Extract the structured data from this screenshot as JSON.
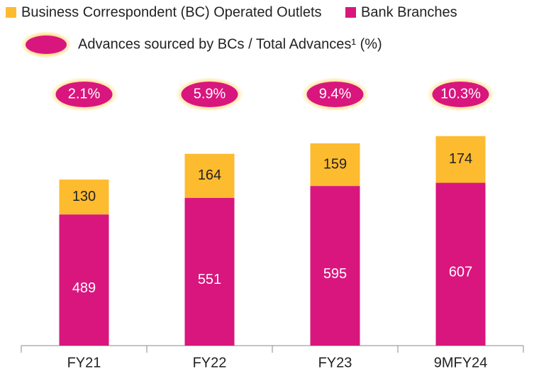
{
  "chart_data": {
    "type": "stacked_bar",
    "categories": [
      "FY21",
      "FY22",
      "FY23",
      "9MFY24"
    ],
    "series": [
      {
        "name": "Bank Branches",
        "color": "#d9167e",
        "values": [
          489,
          551,
          595,
          607
        ]
      },
      {
        "name": "Business Correspondent (BC) Operated Outlets",
        "color": "#fdbb2f",
        "values": [
          130,
          164,
          159,
          174
        ]
      }
    ],
    "ratio": {
      "name": "Advances sourced by BCs / Total Advances¹ (%)",
      "color": "#d9167e",
      "values": [
        2.1,
        5.9,
        9.4,
        10.3
      ],
      "value_labels": [
        "2.1%",
        "5.9%",
        "9.4%",
        "10.3%"
      ]
    }
  }
}
